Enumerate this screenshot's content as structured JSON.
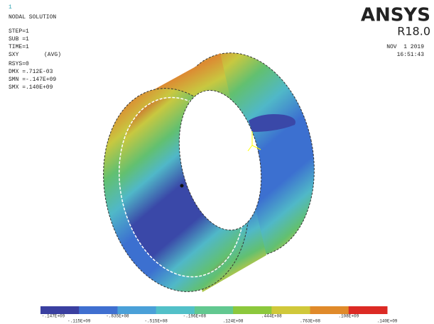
{
  "header": {
    "index": "1",
    "title": "NODAL SOLUTION"
  },
  "info": [
    "STEP=1",
    "SUB =1",
    "TIME=1"
  ],
  "result": {
    "label": "SXY",
    "note": "(AVG)"
  },
  "stats": [
    "RSYS=0",
    "DMX =.712E-03",
    "SMN =-.147E+09",
    "SMX =.140E+09"
  ],
  "brand": {
    "name": "ANSYS",
    "release": "R18.0",
    "date": "NOV  1 2019",
    "time": "16:51:43"
  },
  "legend": {
    "colors": [
      "#3a3fa0",
      "#3f6fd0",
      "#4aa0d8",
      "#52c0c8",
      "#62c890",
      "#8cc83c",
      "#d0c83a",
      "#e08a2a",
      "#dc2a24"
    ],
    "labels": [
      "-.147E+09",
      "-.115E+09",
      "-.835E+08",
      "-.515E+08",
      "-.196E+08",
      ".124E+08",
      ".444E+08",
      ".763E+08",
      ".108E+09",
      ".140E+09"
    ]
  }
}
